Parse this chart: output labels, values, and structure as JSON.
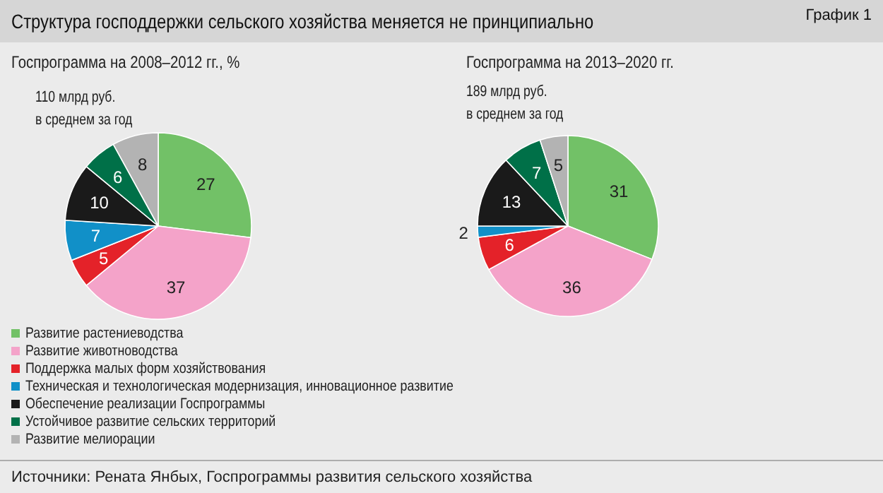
{
  "chart_data": [
    {
      "type": "pie",
      "title": "Госпрограмма на 2008–2012 гг., %",
      "subtitle": "110 млрд руб.\nв среднем за год",
      "annotations": [
        "Структура господдержки сельского хозяйства меняется не принципиально",
        "График 1",
        "Источники: Рената Янбых, Госпрограммы развития сельского хозяйства"
      ],
      "categories": [
        "Развитие растениеводства",
        "Развитие животноводства",
        "Поддержка малых форм хозяйствования",
        "Техническая и технологическая модернизация, инновационное развитие",
        "Обеспечение реализации Госпрограммы",
        "Устойчивое развитие сельских территорий",
        "Развитие мелиорации"
      ],
      "values": [
        27,
        37,
        5,
        7,
        10,
        6,
        8
      ],
      "colors": [
        "#72c167",
        "#f4a3c9",
        "#e42229",
        "#1190c8",
        "#1a1a1a",
        "#007048",
        "#b3b3b3"
      ],
      "data_labels": true,
      "legend": "bottom"
    },
    {
      "type": "pie",
      "title": "Госпрограмма на 2013–2020 гг.",
      "subtitle": "189 млрд руб.\nв среднем за год",
      "categories": [
        null,
        null,
        null,
        null,
        null,
        null,
        null
      ],
      "values": [
        31,
        36,
        6,
        2,
        13,
        7,
        5
      ],
      "colors": [
        "#72c167",
        "#f4a3c9",
        "#e42229",
        "#1190c8",
        "#1a1a1a",
        "#007048",
        "#b3b3b3"
      ],
      "data_labels": true
    }
  ]
}
